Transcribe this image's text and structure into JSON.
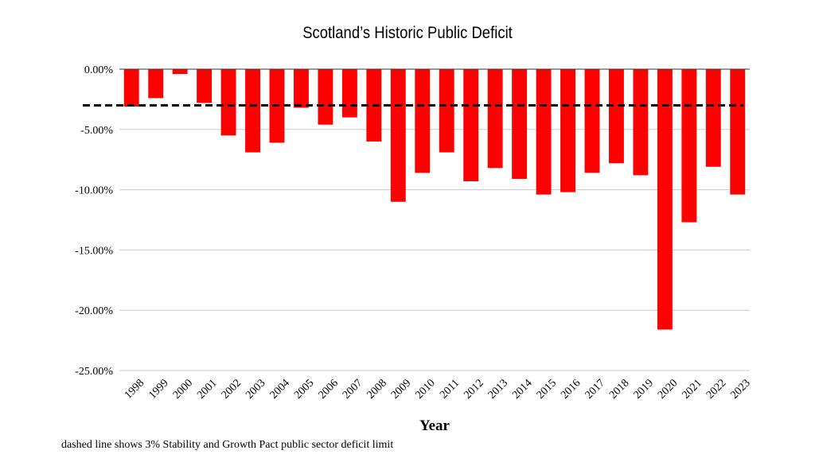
{
  "chart_data": {
    "type": "bar",
    "title": "Scotland’s Historic Public Deficit",
    "xlabel": "Year",
    "ylabel": "",
    "categories": [
      "1998",
      "1999",
      "2000",
      "2001",
      "2002",
      "2003",
      "2004",
      "2005",
      "2006",
      "2007",
      "2008",
      "2009",
      "2010",
      "2011",
      "2012",
      "2013",
      "2014",
      "2015",
      "2016",
      "2017",
      "2018",
      "2019",
      "2020",
      "2021",
      "2022",
      "2023"
    ],
    "values": [
      -3.1,
      -2.4,
      -0.4,
      -2.8,
      -5.5,
      -6.9,
      -6.1,
      -3.2,
      -4.6,
      -4.0,
      -6.0,
      -11.0,
      -8.6,
      -6.9,
      -9.3,
      -8.2,
      -9.1,
      -10.4,
      -10.2,
      -8.6,
      -7.8,
      -8.8,
      -21.6,
      -12.7,
      -8.1,
      -10.4
    ],
    "ylim": [
      -25,
      0
    ],
    "yticks": [
      0,
      -5,
      -10,
      -15,
      -20,
      -25
    ],
    "ytick_labels": [
      "0.00%",
      "-5.00%",
      "-10.00%",
      "-15.00%",
      "-20.00%",
      "-25.00%"
    ],
    "reference_line": {
      "value": -3,
      "style": "dashed",
      "color": "#000000"
    },
    "bar_color": "#ff0000",
    "grid": true,
    "annotation": "dashed line shows 3% Stability and Growth Pact public sector deficit limit"
  }
}
